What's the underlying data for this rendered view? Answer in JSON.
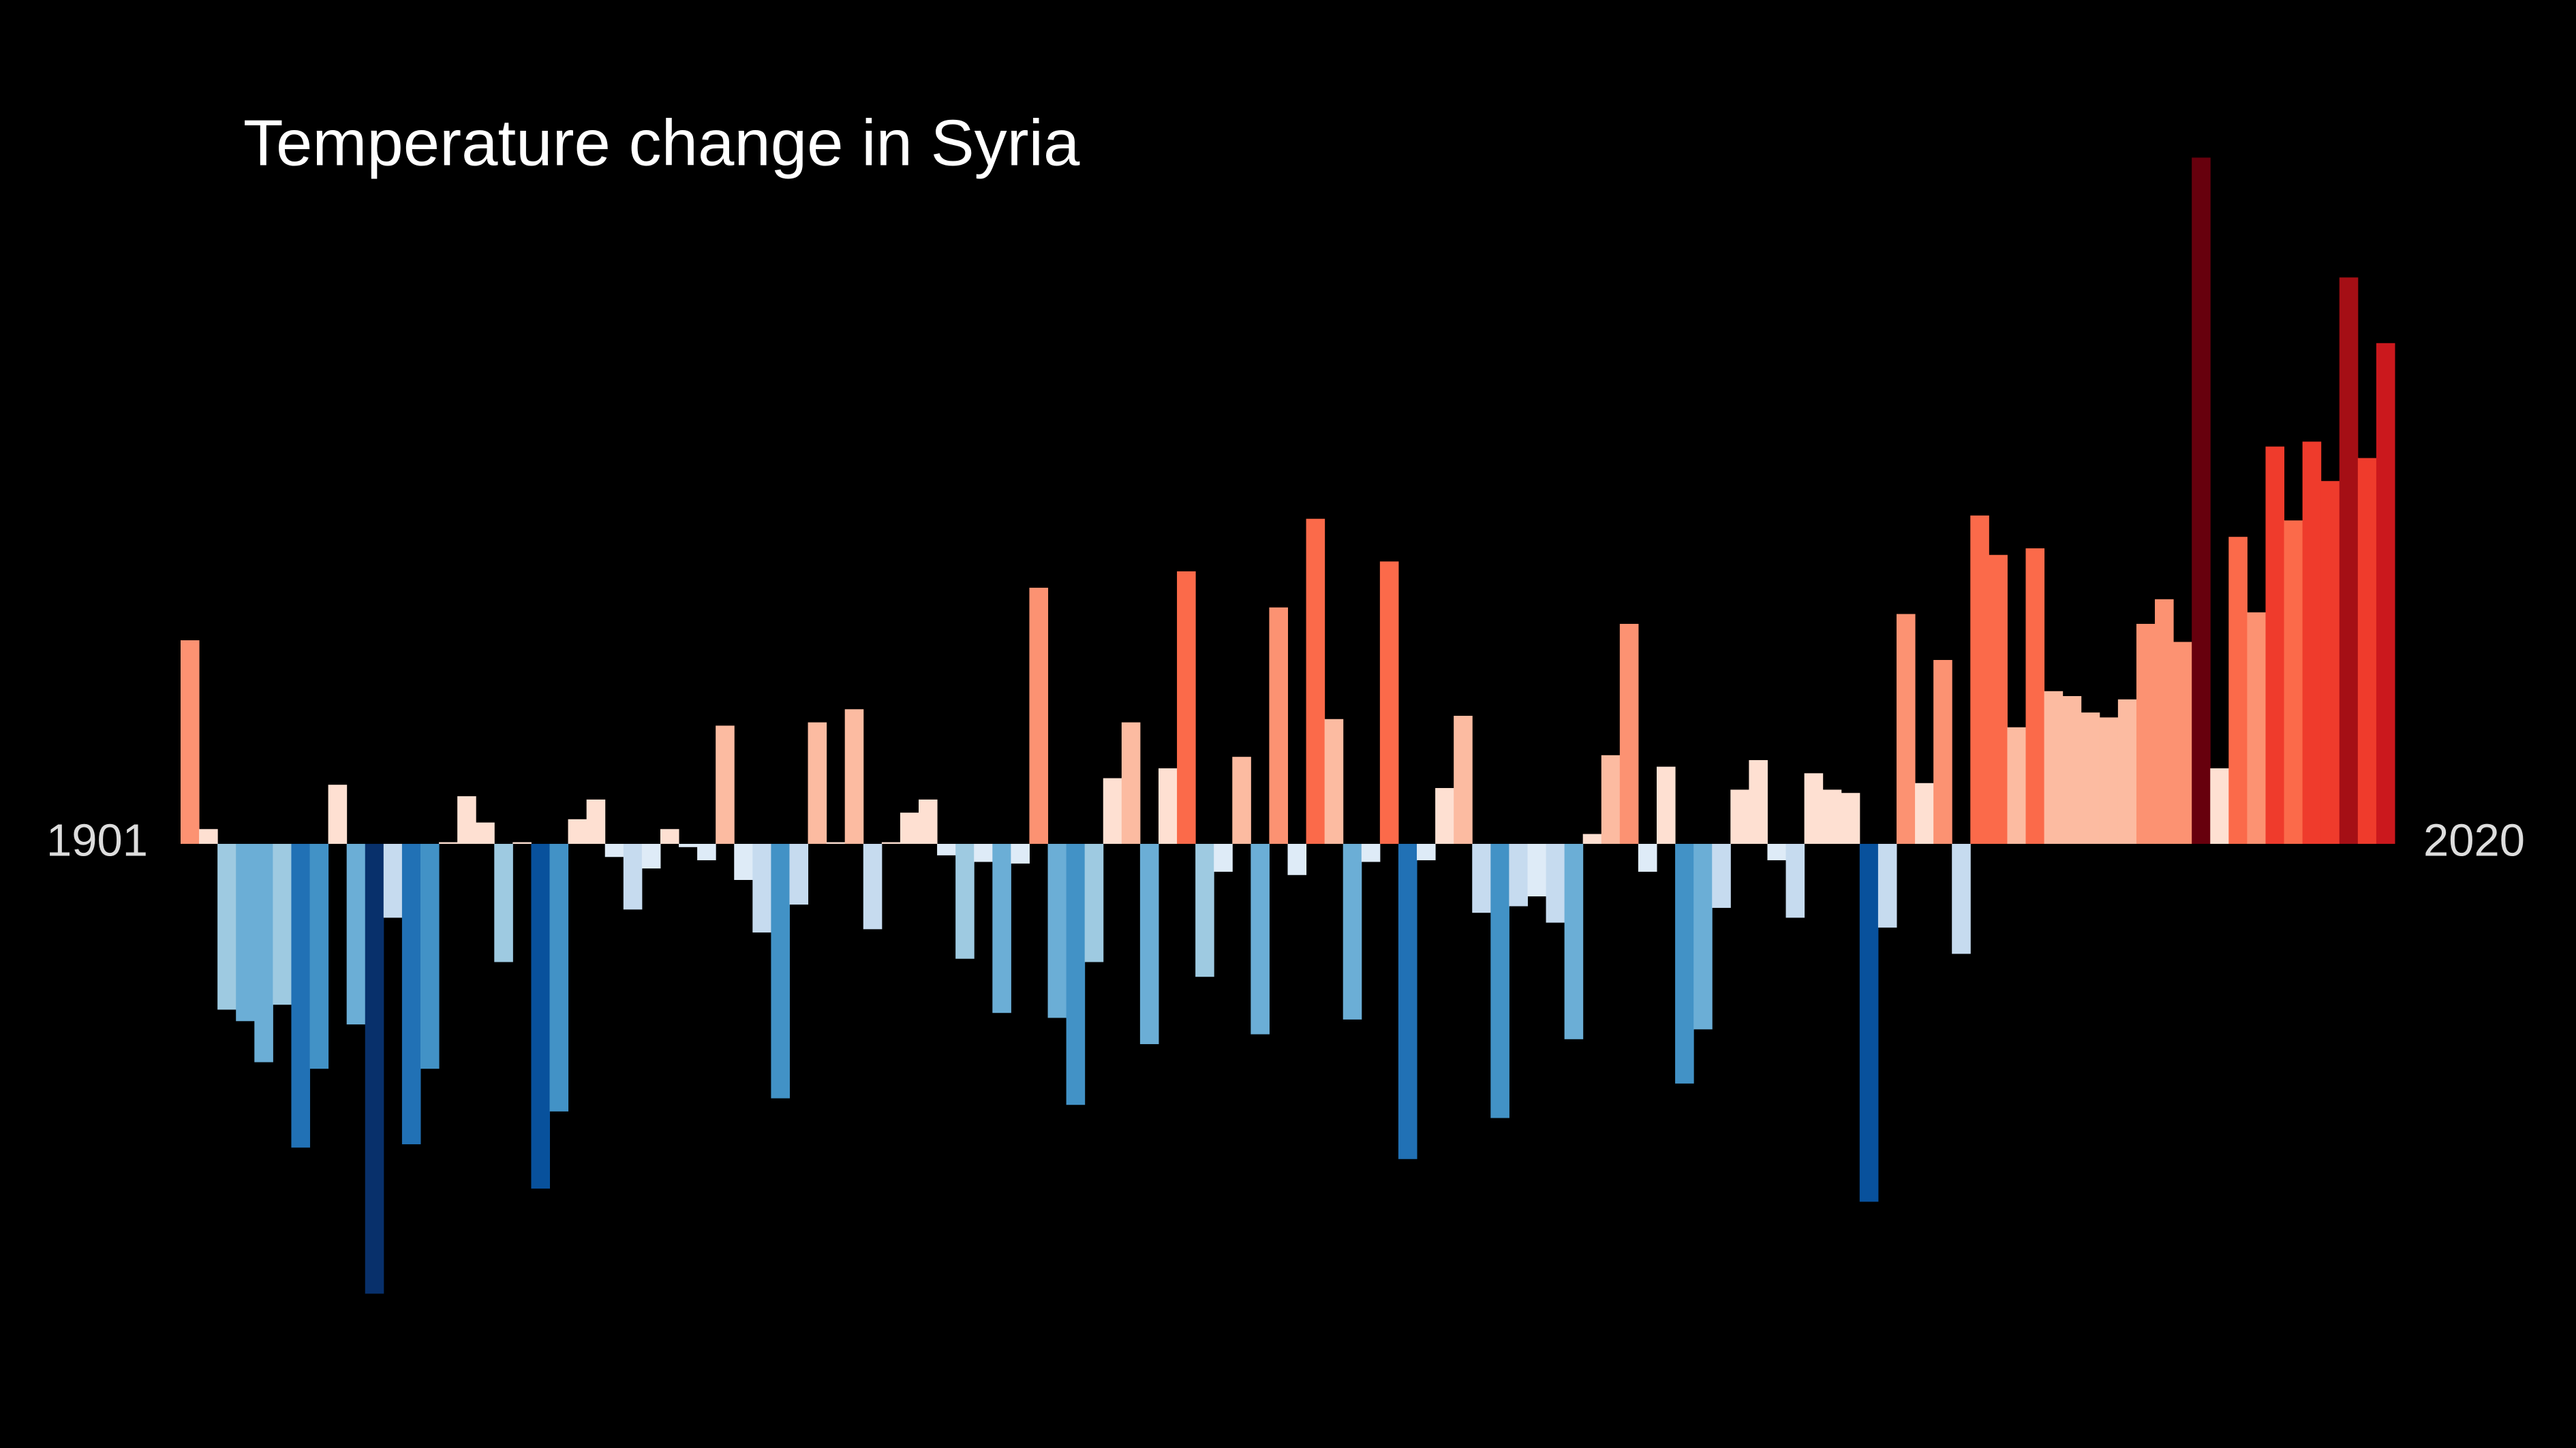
{
  "chart_data": {
    "type": "bar",
    "title": "Temperature change in Syria",
    "x": [
      1901,
      1902,
      1903,
      1904,
      1905,
      1906,
      1907,
      1908,
      1909,
      1910,
      1911,
      1912,
      1913,
      1914,
      1915,
      1916,
      1917,
      1918,
      1919,
      1920,
      1921,
      1922,
      1923,
      1924,
      1925,
      1926,
      1927,
      1928,
      1929,
      1930,
      1931,
      1932,
      1933,
      1934,
      1935,
      1936,
      1937,
      1938,
      1939,
      1940,
      1941,
      1942,
      1943,
      1944,
      1945,
      1946,
      1947,
      1948,
      1949,
      1950,
      1951,
      1952,
      1953,
      1954,
      1955,
      1956,
      1957,
      1958,
      1959,
      1960,
      1961,
      1962,
      1963,
      1964,
      1965,
      1966,
      1967,
      1968,
      1969,
      1970,
      1971,
      1972,
      1973,
      1974,
      1975,
      1976,
      1977,
      1978,
      1979,
      1980,
      1981,
      1982,
      1983,
      1984,
      1985,
      1986,
      1987,
      1988,
      1989,
      1990,
      1991,
      1992,
      1993,
      1994,
      1995,
      1996,
      1997,
      1998,
      1999,
      2000,
      2001,
      2002,
      2003,
      2004,
      2005,
      2006,
      2007,
      2008,
      2009,
      2010,
      2011,
      2012,
      2013,
      2014,
      2015,
      2016,
      2017,
      2018,
      2019,
      2020
    ],
    "values": [
      0.62,
      0.045,
      -0.505,
      -0.54,
      -0.665,
      -0.49,
      -0.925,
      -0.685,
      0.18,
      -0.55,
      -1.37,
      -0.225,
      -0.915,
      -0.685,
      0.005,
      0.145,
      0.065,
      -0.36,
      0.005,
      -1.05,
      -0.815,
      0.075,
      0.135,
      -0.04,
      -0.2,
      -0.075,
      0.045,
      -0.01,
      -0.05,
      0.36,
      -0.11,
      -0.27,
      -0.775,
      -0.185,
      0.37,
      0.005,
      0.41,
      -0.26,
      0.005,
      0.095,
      0.135,
      -0.035,
      -0.35,
      -0.055,
      -0.515,
      -0.06,
      0.78,
      -0.53,
      -0.795,
      -0.36,
      0.2,
      0.37,
      -0.61,
      0.23,
      0.83,
      -0.405,
      -0.085,
      0.265,
      -0.58,
      0.72,
      -0.095,
      0.99,
      0.38,
      -0.535,
      -0.055,
      0.86,
      -0.96,
      -0.05,
      0.17,
      0.39,
      -0.21,
      -0.835,
      -0.19,
      -0.16,
      -0.24,
      -0.595,
      0.03,
      0.27,
      0.67,
      -0.085,
      0.235,
      -0.73,
      -0.565,
      -0.195,
      0.165,
      0.255,
      -0.05,
      -0.225,
      0.215,
      0.165,
      0.155,
      -1.09,
      -0.255,
      0.7,
      0.185,
      0.56,
      -0.335,
      1.0,
      0.88,
      0.355,
      0.9,
      0.465,
      0.45,
      0.4,
      0.385,
      0.44,
      0.67,
      0.745,
      0.615,
      2.09,
      0.23,
      0.935,
      0.705,
      1.21,
      0.985,
      1.225,
      1.105,
      1.725,
      1.175,
      1.525
    ],
    "xlim": [
      1900.5,
      2020.5
    ],
    "xticks": [
      1901,
      2020
    ],
    "ylim": [
      -1.84,
      2.57
    ],
    "colors": {
      "negative": [
        "#deebf7",
        "#c6dbef",
        "#9ecae1",
        "#6baed6",
        "#4292c6",
        "#2171b5",
        "#08519c",
        "#08306b"
      ],
      "positive": [
        "#fee0d2",
        "#fcbba1",
        "#fc9272",
        "#fb6a4a",
        "#ef3b2c",
        "#cb181d",
        "#a50f15",
        "#67000d"
      ]
    }
  }
}
